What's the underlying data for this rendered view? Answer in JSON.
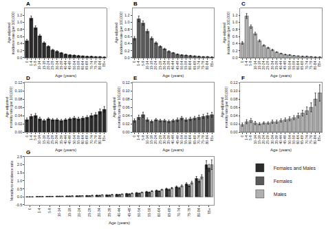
{
  "chart_data": [
    {
      "type": "bar",
      "title": "A",
      "xlabel": "Age (years)",
      "ylabel": "Age-adjusted\nincidence rate (per 100,000)",
      "categories": [
        "0",
        "1-4",
        "5-9",
        "10-14",
        "15-19",
        "20-24",
        "25-29",
        "30-34",
        "35-39",
        "40-44",
        "45-49",
        "50-54",
        "55-59",
        "60-64",
        "65-69",
        "70-74",
        "75-79",
        "80-84",
        "85+"
      ],
      "values": [
        0.48,
        1.12,
        0.85,
        0.62,
        0.42,
        0.32,
        0.22,
        0.18,
        0.14,
        0.1,
        0.08,
        0.07,
        0.06,
        0.05,
        0.04,
        0.04,
        0.03,
        0.03,
        0.02
      ],
      "errors": [
        0.04,
        0.06,
        0.05,
        0.04,
        0.03,
        0.02,
        0.02,
        0.02,
        0.01,
        0.01,
        0.01,
        0.01,
        0.01,
        0.005,
        0.005,
        0.005,
        0.005,
        0.005,
        0.005
      ],
      "color": "#2b2b2b",
      "ylim": [
        0,
        1.4
      ],
      "yticks": [
        {
          "value": 0,
          "label": "0.0"
        },
        0.2,
        0.4,
        0.6,
        0.8,
        {
          "value": 1,
          "label": "1.0"
        },
        1.2
      ],
      "grid": false
    },
    {
      "type": "bar",
      "title": "B",
      "xlabel": "Age (years)",
      "ylabel": "Age-adjusted\nincidence rate (per 100,000)",
      "categories": [
        "0",
        "1-4",
        "5-9",
        "10-14",
        "15-19",
        "20-24",
        "25-29",
        "30-34",
        "35-39",
        "40-44",
        "45-49",
        "50-54",
        "55-59",
        "60-64",
        "65-69",
        "70-74",
        "75-79",
        "80-84",
        "85+"
      ],
      "values": [
        0.55,
        1.1,
        0.98,
        0.75,
        0.55,
        0.42,
        0.32,
        0.25,
        0.18,
        0.14,
        0.1,
        0.08,
        0.07,
        0.06,
        0.05,
        0.04,
        0.03,
        0.03,
        0.02
      ],
      "errors": [
        0.05,
        0.08,
        0.06,
        0.05,
        0.04,
        0.03,
        0.02,
        0.02,
        0.02,
        0.01,
        0.01,
        0.01,
        0.01,
        0.01,
        0.005,
        0.005,
        0.005,
        0.005,
        0.005
      ],
      "color": "#5a5a5a",
      "ylim": [
        0,
        1.4
      ],
      "yticks": [
        {
          "value": 0,
          "label": "0.0"
        },
        0.2,
        0.4,
        0.6,
        0.8,
        {
          "value": 1,
          "label": "1.0"
        },
        1.2
      ],
      "grid": false
    },
    {
      "type": "bar",
      "title": "C",
      "xlabel": "Age (years)",
      "ylabel": "Age-adjusted\nincidence rate (per 100,000)",
      "categories": [
        "0",
        "1-4",
        "5-9",
        "10-14",
        "15-19",
        "20-24",
        "25-29",
        "30-34",
        "35-39",
        "40-44",
        "45-49",
        "50-54",
        "55-59",
        "60-64",
        "65-69",
        "70-74",
        "75-79",
        "80-84",
        "85+"
      ],
      "values": [
        0.42,
        1.18,
        0.88,
        0.68,
        0.48,
        0.35,
        0.28,
        0.22,
        0.16,
        0.12,
        0.09,
        0.08,
        0.06,
        0.05,
        0.04,
        0.04,
        0.03,
        0.02,
        0.02
      ],
      "errors": [
        0.04,
        0.07,
        0.05,
        0.04,
        0.03,
        0.02,
        0.02,
        0.02,
        0.01,
        0.01,
        0.01,
        0.01,
        0.005,
        0.005,
        0.005,
        0.005,
        0.005,
        0.005,
        0.005
      ],
      "color": "#b0b0b0",
      "ylim": [
        0,
        1.4
      ],
      "yticks": [
        {
          "value": 0,
          "label": "0.0"
        },
        0.2,
        0.4,
        0.6,
        0.8,
        {
          "value": 1,
          "label": "1.0"
        },
        1.2
      ],
      "grid": false
    },
    {
      "type": "bar",
      "title": "D",
      "xlabel": "Age (years)",
      "ylabel": "Age-adjusted\nmortality rate (per 100,000)",
      "categories": [
        "0",
        "1-4",
        "5-9",
        "10-14",
        "15-19",
        "20-24",
        "25-29",
        "30-34",
        "35-39",
        "40-44",
        "45-49",
        "50-54",
        "55-59",
        "60-64",
        "65-69",
        "70-74",
        "75-79",
        "80-84",
        "85+"
      ],
      "values": [
        0.03,
        0.038,
        0.04,
        0.032,
        0.028,
        0.032,
        0.03,
        0.03,
        0.028,
        0.03,
        0.032,
        0.034,
        0.032,
        0.034,
        0.036,
        0.04,
        0.042,
        0.05,
        0.055
      ],
      "errors": [
        0.004,
        0.005,
        0.005,
        0.004,
        0.003,
        0.003,
        0.003,
        0.003,
        0.003,
        0.003,
        0.003,
        0.004,
        0.004,
        0.004,
        0.004,
        0.005,
        0.005,
        0.006,
        0.007
      ],
      "color": "#2b2b2b",
      "ylim": [
        0,
        0.12
      ],
      "yticks": [
        {
          "value": 0,
          "label": "0.00"
        },
        0.02,
        0.04,
        0.06,
        0.08,
        {
          "value": 0.1,
          "label": "0.10"
        },
        0.12
      ],
      "grid": false
    },
    {
      "type": "bar",
      "title": "E",
      "xlabel": "Age (years)",
      "ylabel": "Age-adjusted\nmortality rate (per 100,000)",
      "categories": [
        "0",
        "1-4",
        "5-9",
        "10-14",
        "15-19",
        "20-24",
        "25-29",
        "30-34",
        "35-39",
        "40-44",
        "45-49",
        "50-54",
        "55-59",
        "60-64",
        "65-69",
        "70-74",
        "75-79",
        "80-84",
        "85+"
      ],
      "values": [
        0.028,
        0.036,
        0.042,
        0.03,
        0.026,
        0.03,
        0.028,
        0.028,
        0.026,
        0.028,
        0.03,
        0.034,
        0.03,
        0.032,
        0.034,
        0.036,
        0.038,
        0.04,
        0.042
      ],
      "errors": [
        0.004,
        0.005,
        0.006,
        0.004,
        0.003,
        0.003,
        0.003,
        0.003,
        0.003,
        0.003,
        0.004,
        0.004,
        0.004,
        0.004,
        0.004,
        0.005,
        0.005,
        0.006,
        0.006
      ],
      "color": "#5a5a5a",
      "ylim": [
        0,
        0.12
      ],
      "yticks": [
        {
          "value": 0,
          "label": "0.00"
        },
        0.02,
        0.04,
        0.06,
        0.08,
        {
          "value": 0.1,
          "label": "0.10"
        },
        0.12
      ],
      "grid": false
    },
    {
      "type": "bar",
      "title": "F",
      "xlabel": "Age (years)",
      "ylabel": "Age-adjusted\nmortality rate (per 100,000)",
      "categories": [
        "0",
        "1-4",
        "5-9",
        "10-14",
        "15-19",
        "20-24",
        "25-29",
        "30-34",
        "35-39",
        "40-44",
        "45-49",
        "50-54",
        "55-59",
        "60-64",
        "65-69",
        "70-74",
        "75-79",
        "80-84",
        "85+"
      ],
      "values": [
        0.018,
        0.025,
        0.028,
        0.022,
        0.02,
        0.022,
        0.022,
        0.025,
        0.025,
        0.028,
        0.03,
        0.032,
        0.035,
        0.04,
        0.046,
        0.052,
        0.06,
        0.08,
        0.095
      ],
      "errors": [
        0.004,
        0.005,
        0.005,
        0.004,
        0.003,
        0.003,
        0.003,
        0.004,
        0.004,
        0.004,
        0.004,
        0.005,
        0.005,
        0.006,
        0.007,
        0.009,
        0.011,
        0.015,
        0.02
      ],
      "color": "#b0b0b0",
      "ylim": [
        0,
        0.12
      ],
      "yticks": [
        {
          "value": 0,
          "label": "0.00"
        },
        0.02,
        0.04,
        0.06,
        0.08,
        {
          "value": 0.1,
          "label": "0.10"
        },
        0.12
      ],
      "grid": false
    },
    {
      "type": "bar",
      "title": "G",
      "xlabel": "Age (years)",
      "ylabel": "Mortality-to-incidence ratio",
      "categories": [
        "0",
        "1-4",
        "5-9",
        "10-14",
        "15-19",
        "20-24",
        "25-29",
        "30-34",
        "35-39",
        "40-44",
        "45-49",
        "50-54",
        "55-59",
        "60-64",
        "65-69",
        "70-74",
        "75-79",
        "80-84",
        "85+"
      ],
      "series": [
        {
          "name": "Females and Males",
          "color": "#2b2b2b",
          "values": [
            0.0,
            0.02,
            0.03,
            0.04,
            0.05,
            0.06,
            0.08,
            0.1,
            0.12,
            0.15,
            0.2,
            0.25,
            0.32,
            0.4,
            0.5,
            0.62,
            0.8,
            1.15,
            2.0
          ],
          "errors": [
            0.001,
            0.005,
            0.005,
            0.005,
            0.005,
            0.006,
            0.008,
            0.01,
            0.012,
            0.015,
            0.018,
            0.022,
            0.025,
            0.03,
            0.04,
            0.06,
            0.08,
            0.12,
            0.25
          ]
        },
        {
          "name": "Females",
          "color": "#5a5a5a",
          "values": [
            0.0,
            0.02,
            0.03,
            0.04,
            0.05,
            0.06,
            0.07,
            0.09,
            0.11,
            0.14,
            0.18,
            0.22,
            0.28,
            0.35,
            0.45,
            0.55,
            0.7,
            1.0,
            1.8
          ],
          "errors": [
            0.001,
            0.004,
            0.004,
            0.004,
            0.004,
            0.005,
            0.007,
            0.009,
            0.01,
            0.012,
            0.016,
            0.02,
            0.022,
            0.028,
            0.035,
            0.05,
            0.065,
            0.1,
            0.22
          ]
        },
        {
          "name": "Males",
          "color": "#b0b0b0",
          "values": [
            0.0,
            0.02,
            0.03,
            0.04,
            0.06,
            0.07,
            0.09,
            0.12,
            0.14,
            0.17,
            0.22,
            0.28,
            0.36,
            0.45,
            0.55,
            0.68,
            0.88,
            1.25,
            2.0
          ],
          "errors": [
            0.001,
            0.005,
            0.005,
            0.005,
            0.006,
            0.007,
            0.009,
            0.011,
            0.013,
            0.016,
            0.02,
            0.024,
            0.028,
            0.032,
            0.042,
            0.065,
            0.085,
            0.13,
            0.3
          ]
        }
      ],
      "ylim": [
        -0.5,
        2.5
      ],
      "yticks": [
        -0.5,
        {
          "value": 0,
          "label": "0.0"
        },
        0.5,
        {
          "value": 1,
          "label": "1.0"
        },
        1.5,
        {
          "value": 2,
          "label": "2.0"
        },
        2.5
      ],
      "grid": false,
      "legend": "right"
    }
  ]
}
